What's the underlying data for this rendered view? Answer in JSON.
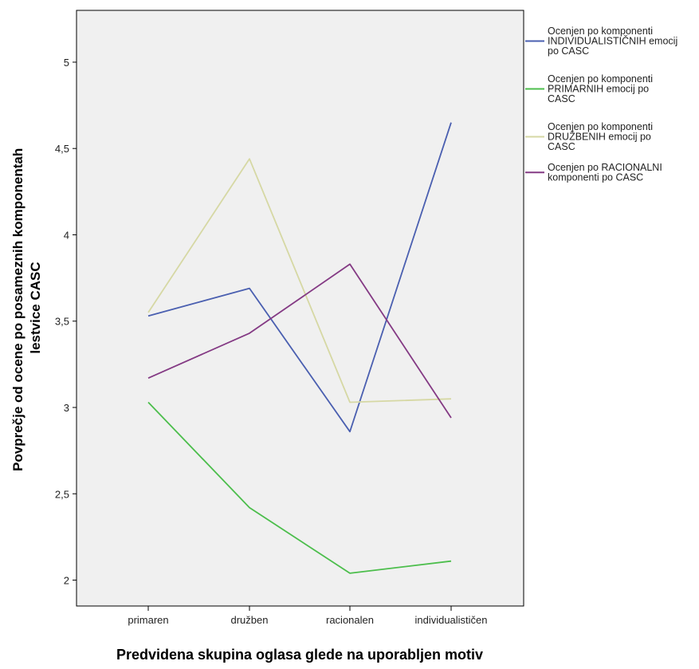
{
  "chart_data": {
    "type": "line",
    "xlabel": "Predvidena skupina oglasa glede na uporabljen motiv",
    "ylabel": [
      "Povprečje od ocene po posameznih komponentah",
      "lestvice CASC"
    ],
    "categories": [
      "primaren",
      "družben",
      "racionalen",
      "individualističen"
    ],
    "ylim": [
      1.85,
      5.3
    ],
    "yticks": [
      2,
      2.5,
      3,
      3.5,
      4,
      4.5,
      5
    ],
    "ytick_labels": [
      "2",
      "2,5",
      "3",
      "3,5",
      "4",
      "4,5",
      "5"
    ],
    "grid": false,
    "legend_position": "right",
    "series": [
      {
        "name": [
          "Ocenjen po komponenti",
          "INDIVIDUALISTIČNIH emocij",
          "po CASC"
        ],
        "color": "#4a5fb0",
        "values": [
          3.53,
          3.69,
          2.86,
          4.65
        ]
      },
      {
        "name": [
          "Ocenjen po komponenti",
          "PRIMARNIH emocij po",
          "CASC"
        ],
        "color": "#4cbe4c",
        "values": [
          3.03,
          2.42,
          2.04,
          2.11
        ]
      },
      {
        "name": [
          "Ocenjen po komponenti",
          "DRUŽBENIH emocij po",
          "CASC"
        ],
        "color": "#d6d8a4",
        "values": [
          3.55,
          4.44,
          3.03,
          3.05
        ]
      },
      {
        "name": [
          "Ocenjen po RACIONALNI",
          "komponenti po CASC"
        ],
        "color": "#843a84",
        "values": [
          3.17,
          3.43,
          3.83,
          2.94
        ]
      }
    ]
  }
}
